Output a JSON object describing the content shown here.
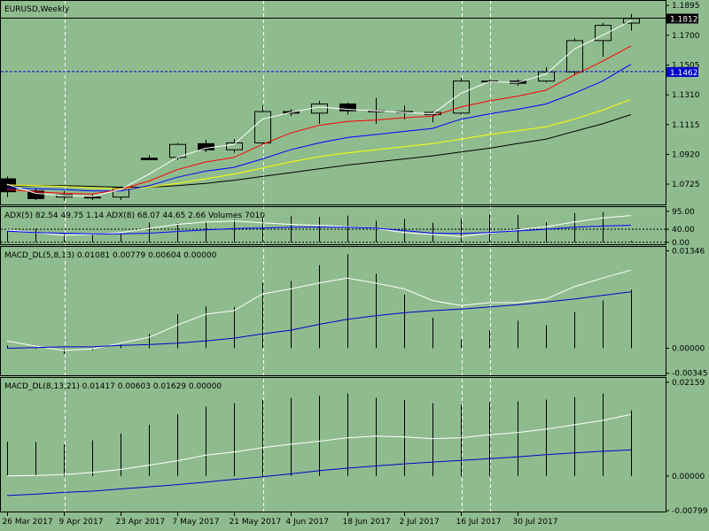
{
  "chart_data": {
    "type": "candlestick",
    "symbol_label": "EURUSD,Weekly",
    "x_labels": [
      "26 Mar 2017",
      "9 Apr 2017",
      "23 Apr 2017",
      "7 May 2017",
      "21 May 2017",
      "4 Jun 2017",
      "18 Jun 2017",
      "2 Jul 2017",
      "16 Jul 2017",
      "30 Jul 2017"
    ],
    "price_axis": {
      "ticks": [
        "1.1895",
        "1.1700",
        "1.1505",
        "1.1310",
        "1.1115",
        "1.0920",
        "1.0725"
      ],
      "tick_values": [
        1.1895,
        1.17,
        1.1505,
        1.131,
        1.1115,
        1.092,
        1.0725
      ],
      "ylim": [
        1.0592,
        1.1925
      ],
      "current_price": "1.1812",
      "current_value": 1.1812,
      "hline_price": "1.1462",
      "hline_value": 1.1462
    },
    "candles": [
      {
        "o": 1.076,
        "h": 1.0775,
        "l": 1.064,
        "c": 1.0675
      },
      {
        "o": 1.068,
        "h": 1.07,
        "l": 1.062,
        "c": 1.063
      },
      {
        "o": 1.064,
        "h": 1.068,
        "l": 1.0615,
        "c": 1.0655
      },
      {
        "o": 1.064,
        "h": 1.066,
        "l": 1.062,
        "c": 1.064
      },
      {
        "o": 1.064,
        "h": 1.071,
        "l": 1.062,
        "c": 1.07
      },
      {
        "o": 1.0895,
        "h": 1.0915,
        "l": 1.088,
        "c": 1.0885
      },
      {
        "o": 1.09,
        "h": 1.0995,
        "l": 1.0885,
        "c": 1.0985
      },
      {
        "o": 1.099,
        "h": 1.1015,
        "l": 1.0935,
        "c": 1.095
      },
      {
        "o": 1.095,
        "h": 1.102,
        "l": 1.093,
        "c": 1.0995
      },
      {
        "o": 1.0995,
        "h": 1.124,
        "l": 1.099,
        "c": 1.12
      },
      {
        "o": 1.12,
        "h": 1.1215,
        "l": 1.117,
        "c": 1.119
      },
      {
        "o": 1.119,
        "h": 1.127,
        "l": 1.112,
        "c": 1.125
      },
      {
        "o": 1.125,
        "h": 1.126,
        "l": 1.118,
        "c": 1.1205
      },
      {
        "o": 1.1205,
        "h": 1.129,
        "l": 1.112,
        "c": 1.12
      },
      {
        "o": 1.12,
        "h": 1.124,
        "l": 1.115,
        "c": 1.1195
      },
      {
        "o": 1.118,
        "h": 1.12,
        "l": 1.113,
        "c": 1.1195
      },
      {
        "o": 1.119,
        "h": 1.142,
        "l": 1.118,
        "c": 1.14
      },
      {
        "o": 1.14,
        "h": 1.141,
        "l": 1.1385,
        "c": 1.1395
      },
      {
        "o": 1.14,
        "h": 1.141,
        "l": 1.137,
        "c": 1.1385
      },
      {
        "o": 1.14,
        "h": 1.149,
        "l": 1.139,
        "c": 1.146
      },
      {
        "o": 1.146,
        "h": 1.168,
        "l": 1.144,
        "c": 1.1665
      },
      {
        "o": 1.1665,
        "h": 1.178,
        "l": 1.156,
        "c": 1.1765
      },
      {
        "o": 1.178,
        "h": 1.184,
        "l": 1.173,
        "c": 1.181
      }
    ],
    "ma_white": [
      1.0725,
      1.0665,
      1.065,
      1.0645,
      1.069,
      1.079,
      1.09,
      1.096,
      1.0985,
      1.115,
      1.1195,
      1.123,
      1.1215,
      1.1205,
      1.1195,
      1.1185,
      1.132,
      1.1395,
      1.139,
      1.1445,
      1.161,
      1.17,
      1.1795
    ],
    "ma_red": [
      1.069,
      1.0675,
      1.0665,
      1.066,
      1.069,
      1.0745,
      1.082,
      1.087,
      1.09,
      1.0985,
      1.106,
      1.111,
      1.1135,
      1.1145,
      1.116,
      1.117,
      1.123,
      1.127,
      1.13,
      1.134,
      1.144,
      1.153,
      1.163
    ],
    "ma_blue": [
      1.07,
      1.0695,
      1.069,
      1.068,
      1.068,
      1.0715,
      1.077,
      1.081,
      1.0835,
      1.089,
      1.095,
      1.0995,
      1.103,
      1.105,
      1.107,
      1.109,
      1.115,
      1.1185,
      1.1215,
      1.125,
      1.132,
      1.14,
      1.151
    ],
    "ma_yellow": [
      1.072,
      1.0715,
      1.071,
      1.07,
      1.0695,
      1.0705,
      1.073,
      1.076,
      1.079,
      1.083,
      1.087,
      1.0905,
      1.093,
      1.095,
      1.097,
      1.099,
      1.102,
      1.105,
      1.1075,
      1.11,
      1.115,
      1.121,
      1.128
    ],
    "ma_black": [
      1.071,
      1.0715,
      1.0715,
      1.071,
      1.0705,
      1.0705,
      1.0715,
      1.073,
      1.075,
      1.0775,
      1.08,
      1.0825,
      1.085,
      1.087,
      1.089,
      1.091,
      1.0935,
      1.096,
      1.099,
      1.102,
      1.107,
      1.112,
      1.118
    ],
    "adx_panel": {
      "label": "ADX(5) 82.54 49.75 1.14 ADX(8) 68.07 44.65 2.66 Volumes 7010",
      "ticks": [
        "95.00",
        "40.00",
        "0.00"
      ],
      "tick_values": [
        95,
        40,
        0
      ],
      "ylim": [
        -6,
        108
      ],
      "adx_white": [
        38,
        30,
        22,
        24,
        30,
        42,
        55,
        62,
        65,
        60,
        55,
        52,
        48,
        42,
        30,
        24,
        18,
        28,
        38,
        48,
        62,
        75,
        82
      ],
      "adx_blue": [
        34,
        30,
        28,
        26,
        26,
        28,
        33,
        38,
        42,
        44,
        46,
        47,
        46,
        43,
        36,
        28,
        27,
        30,
        35,
        40,
        46,
        50,
        52
      ],
      "bars": [
        35,
        42,
        28,
        24,
        26,
        60,
        58,
        62,
        70,
        75,
        80,
        78,
        82,
        66,
        72,
        60,
        74,
        85,
        84,
        62,
        90,
        92,
        5
      ]
    },
    "macd1": {
      "label": "MACD_DL(5,8,13) 0.01081 0.00779 0.00604 0.00000",
      "ticks": [
        "0.01346",
        "0.00000",
        "-0.00345"
      ],
      "tick_values": [
        0.01346,
        0.0,
        -0.00345
      ],
      "ylim": [
        -0.00385,
        0.014
      ],
      "hist": [
        0.0004,
        -0.0001,
        -0.0008,
        -0.0003,
        0.0005,
        0.002,
        0.0047,
        0.0058,
        0.0057,
        0.0091,
        0.0093,
        0.0115,
        0.013,
        0.0103,
        0.0074,
        0.0042,
        0.0012,
        0.0025,
        0.0038,
        0.0032,
        0.005,
        0.0066,
        0.0081
      ],
      "line_white": [
        0.001,
        0.0003,
        -0.0003,
        -0.0001,
        0.0007,
        0.0015,
        0.0032,
        0.0047,
        0.0052,
        0.0075,
        0.0082,
        0.009,
        0.0097,
        0.009,
        0.0082,
        0.0066,
        0.0059,
        0.0063,
        0.0063,
        0.0068,
        0.0085,
        0.0097,
        0.0108
      ],
      "line_blue": [
        0.0,
        0.0001,
        0.0002,
        0.0002,
        0.0004,
        0.0005,
        0.0007,
        0.001,
        0.0014,
        0.002,
        0.0025,
        0.0033,
        0.004,
        0.0045,
        0.0049,
        0.0052,
        0.0054,
        0.0057,
        0.006,
        0.0064,
        0.0068,
        0.0073,
        0.0078
      ]
    },
    "macd2": {
      "label": "MACD_DL(8,13,21) 0.01417 0.00603 0.01629 0.00000",
      "ticks": [
        "0.02159",
        "0.00000",
        "-0.00799"
      ],
      "tick_values": [
        0.02159,
        0.0,
        -0.00799
      ],
      "ylim": [
        -0.0084,
        0.0226
      ],
      "hist": [
        0.0079,
        0.0078,
        0.0072,
        0.0082,
        0.0098,
        0.0118,
        0.0142,
        0.016,
        0.0168,
        0.0175,
        0.018,
        0.0185,
        0.019,
        0.018,
        0.0175,
        0.0168,
        0.0165,
        0.017,
        0.0172,
        0.0176,
        0.0182,
        0.019,
        0.0151
      ],
      "line_white": [
        0.0,
        0.0001,
        0.0003,
        0.0008,
        0.0015,
        0.0025,
        0.0035,
        0.0048,
        0.0055,
        0.0065,
        0.0073,
        0.008,
        0.0088,
        0.0092,
        0.009,
        0.0086,
        0.0088,
        0.0095,
        0.01,
        0.0108,
        0.0118,
        0.0128,
        0.0142
      ],
      "line_blue": [
        -0.0045,
        -0.0042,
        -0.0038,
        -0.0035,
        -0.003,
        -0.0025,
        -0.002,
        -0.0014,
        -0.0008,
        -0.0002,
        0.0005,
        0.0012,
        0.0018,
        0.0023,
        0.0028,
        0.0032,
        0.0036,
        0.004,
        0.0044,
        0.0049,
        0.0053,
        0.0057,
        0.006
      ]
    }
  }
}
